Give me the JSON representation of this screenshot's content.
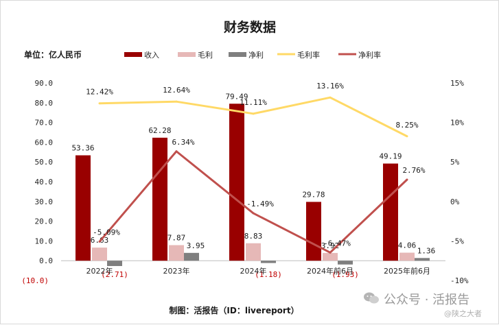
{
  "chart_data": {
    "type": "bar+line",
    "title": "财务数据",
    "unit_label": "单位：亿人民币",
    "source": "制图：活报告（ID：livereport）",
    "categories": [
      "2022年",
      "2023年",
      "2024年",
      "2024年前6月",
      "2025年前6月"
    ],
    "left_axis": {
      "min": -10,
      "max": 90,
      "step": 10,
      "ticks": [
        "(10.0)",
        "0.0",
        "10.0",
        "20.0",
        "30.0",
        "40.0",
        "50.0",
        "60.0",
        "70.0",
        "80.0",
        "90.0"
      ]
    },
    "right_axis": {
      "min": -10,
      "max": 15,
      "step": 5,
      "ticks": [
        "-10%",
        "-5%",
        "0%",
        "5%",
        "10%",
        "15%"
      ]
    },
    "bar_series": [
      {
        "name": "收入",
        "color": "#990000",
        "values": [
          53.36,
          62.28,
          79.49,
          29.78,
          49.19
        ],
        "labels": [
          "53.36",
          "62.28",
          "79.49",
          "29.78",
          "49.19"
        ]
      },
      {
        "name": "毛利",
        "color": "#e6b8b7",
        "values": [
          6.63,
          7.87,
          8.83,
          3.92,
          4.06
        ],
        "labels": [
          "6.63",
          "7.87",
          "8.83",
          "3.92",
          "4.06"
        ]
      },
      {
        "name": "净利",
        "color": "#7f7f7f",
        "values": [
          -2.71,
          3.95,
          -1.18,
          -1.93,
          1.36
        ],
        "labels": [
          "(2.71)",
          "3.95",
          "(1.18)",
          "(1.93)",
          "1.36"
        ]
      }
    ],
    "line_series": [
      {
        "name": "毛利率",
        "color": "#ffd966",
        "values": [
          12.42,
          12.64,
          11.11,
          13.16,
          8.25
        ],
        "labels": [
          "12.42%",
          "12.64%",
          "11.11%",
          "13.16%",
          "8.25%"
        ]
      },
      {
        "name": "净利率",
        "color": "#c0504d",
        "values": [
          -5.09,
          6.34,
          -1.49,
          -6.47,
          2.76
        ],
        "labels": [
          "-5.09%",
          "6.34%",
          "-1.49%",
          "-6.47%",
          "2.76%"
        ]
      }
    ],
    "negative_label_color": "#c00000"
  },
  "watermark": {
    "label": "公众号 · 活报告",
    "sub": "@陕之大者"
  }
}
